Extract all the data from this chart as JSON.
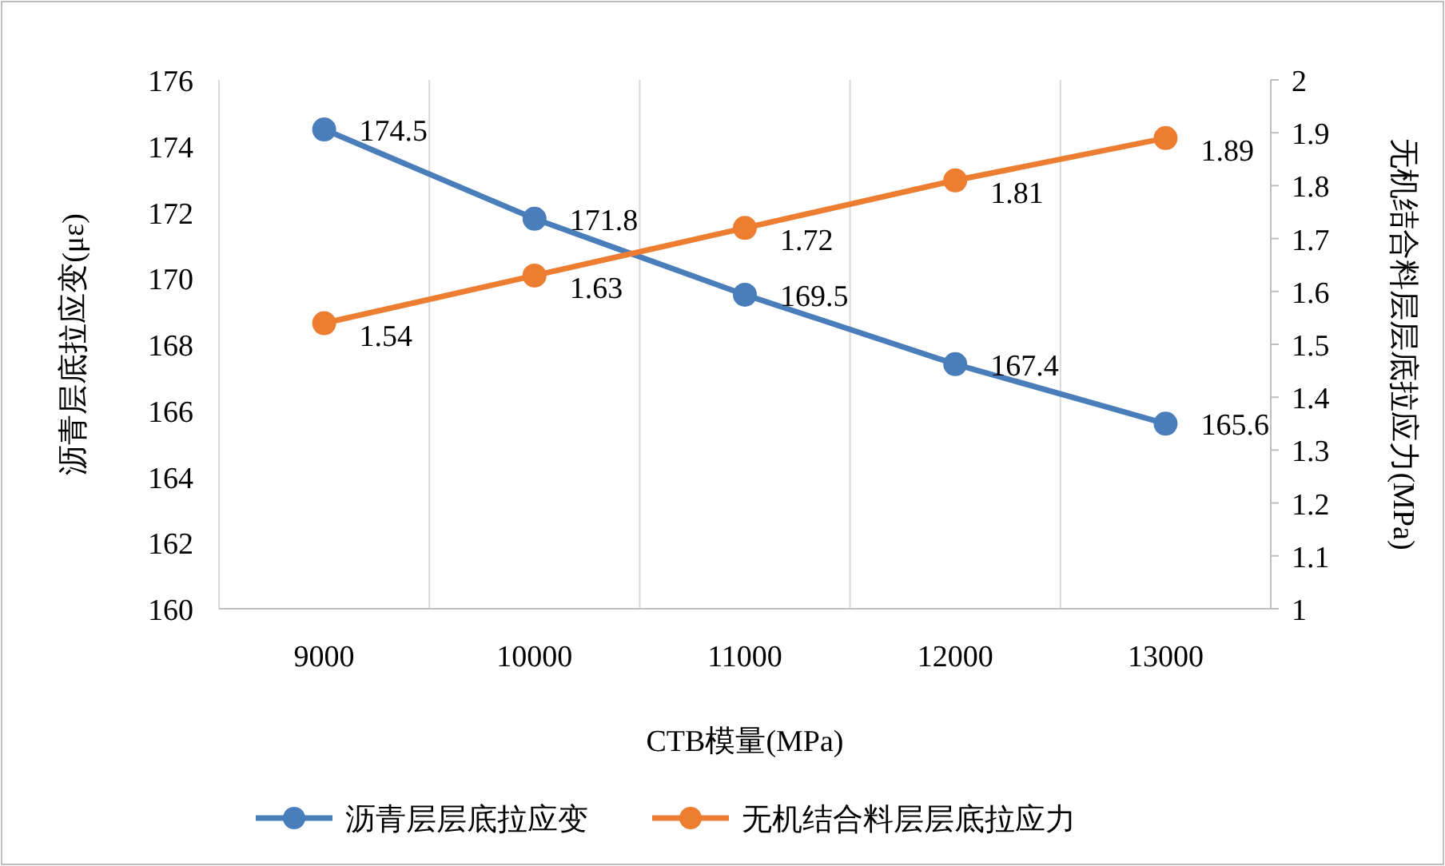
{
  "chart_data": {
    "type": "line",
    "xlabel": "CTB模量(MPa)",
    "ylabel": "沥青层底拉应变(με)",
    "y2label": "无机结合料层层底拉应力(MPa)",
    "categories": [
      "9000",
      "10000",
      "11000",
      "12000",
      "13000"
    ],
    "series": [
      {
        "name": "沥青层层底拉应变",
        "color": "#4a7ebb",
        "values": [
          174.5,
          171.8,
          169.5,
          167.4,
          165.6
        ]
      },
      {
        "name": "无机结合料层层底拉应力",
        "color": "#ed7d31",
        "axis": "y2",
        "values": [
          1.54,
          1.63,
          1.72,
          1.81,
          1.89
        ]
      }
    ],
    "ylim": [
      160,
      176
    ],
    "yticks": [
      160,
      162,
      164,
      166,
      168,
      170,
      172,
      174,
      176
    ],
    "y2lim": [
      1,
      2
    ],
    "y2ticks": [
      1,
      1.1,
      1.2,
      1.3,
      1.4,
      1.5,
      1.6,
      1.7,
      1.8,
      1.9,
      2
    ],
    "data_labels": true,
    "legend": "bottom",
    "marker": "circle",
    "grid": "x"
  }
}
